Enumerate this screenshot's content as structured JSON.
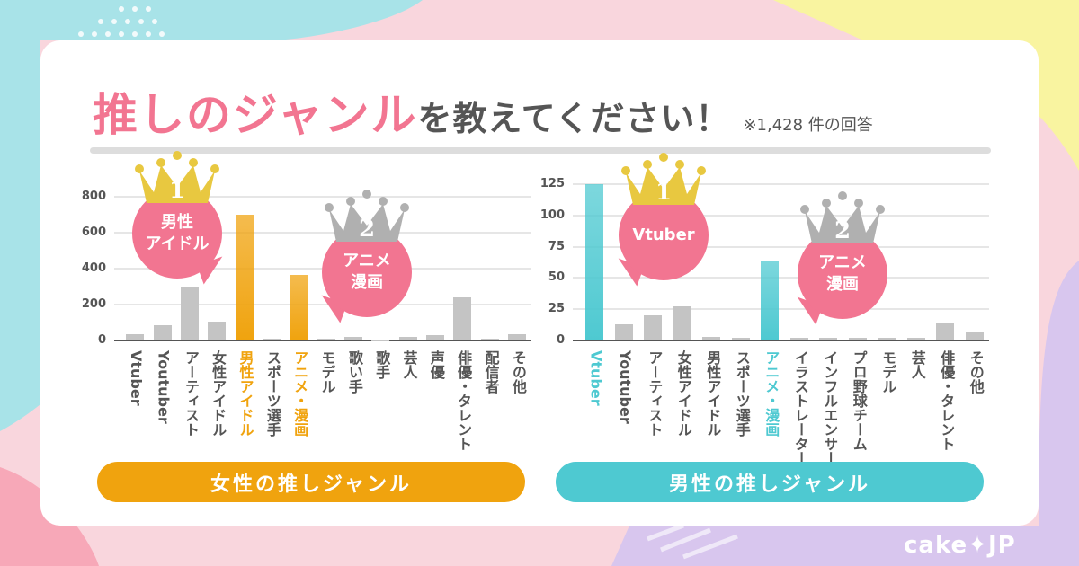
{
  "title": {
    "highlight": "推しのジャンル",
    "rest": "を教えてください！",
    "note": "※1,428 件の回答"
  },
  "logo": "cake✦JP",
  "colors": {
    "pink": "#f27591",
    "orange": "#f0a30e",
    "teal": "#4ec9d1",
    "gray": "#c4c4c4",
    "gold": "#e8c840",
    "silver": "#b0b0b0"
  },
  "chart_data": [
    {
      "type": "bar",
      "title": "女性の推しジャンル",
      "ylim": [
        0,
        800
      ],
      "yticks": [
        0,
        200,
        400,
        600,
        800
      ],
      "categories": [
        "Vtuber",
        "Youtuber",
        "アーティスト",
        "女性アイドル",
        "男性アイドル",
        "スポーツ選手",
        "アニメ・漫画",
        "モデル",
        "歌い手",
        "歌手",
        "芸人",
        "声優",
        "俳優・タレント",
        "配信者",
        "その他"
      ],
      "values": [
        37,
        83,
        297,
        103,
        698,
        12,
        363,
        12,
        18,
        2,
        22,
        28,
        238,
        12,
        33
      ],
      "highlight": [
        4,
        6
      ],
      "accent": "#f0a30e",
      "rank1": {
        "rank": "1",
        "label": "男性\nアイドル"
      },
      "rank2": {
        "rank": "2",
        "label": "アニメ\n漫画"
      }
    },
    {
      "type": "bar",
      "title": "男性の推しジャンル",
      "ylim": [
        0,
        125
      ],
      "yticks": [
        0,
        25,
        50,
        75,
        100,
        125
      ],
      "categories": [
        "Vtuber",
        "Youtuber",
        "アーティスト",
        "女性アイドル",
        "男性アイドル",
        "スポーツ選手",
        "アニメ・漫画",
        "イラストレーター",
        "インフルエンサー",
        "プロ野球チーム",
        "モデル",
        "芸人",
        "俳優・タレント",
        "その他"
      ],
      "values": [
        125,
        13,
        20,
        27,
        3,
        2,
        64,
        2,
        2,
        2,
        2.5,
        2.5,
        14,
        7
      ],
      "highlight": [
        0,
        6
      ],
      "accent": "#4ec9d1",
      "rank1": {
        "rank": "1",
        "label": "Vtuber"
      },
      "rank2": {
        "rank": "2",
        "label": "アニメ\n漫画"
      }
    }
  ]
}
